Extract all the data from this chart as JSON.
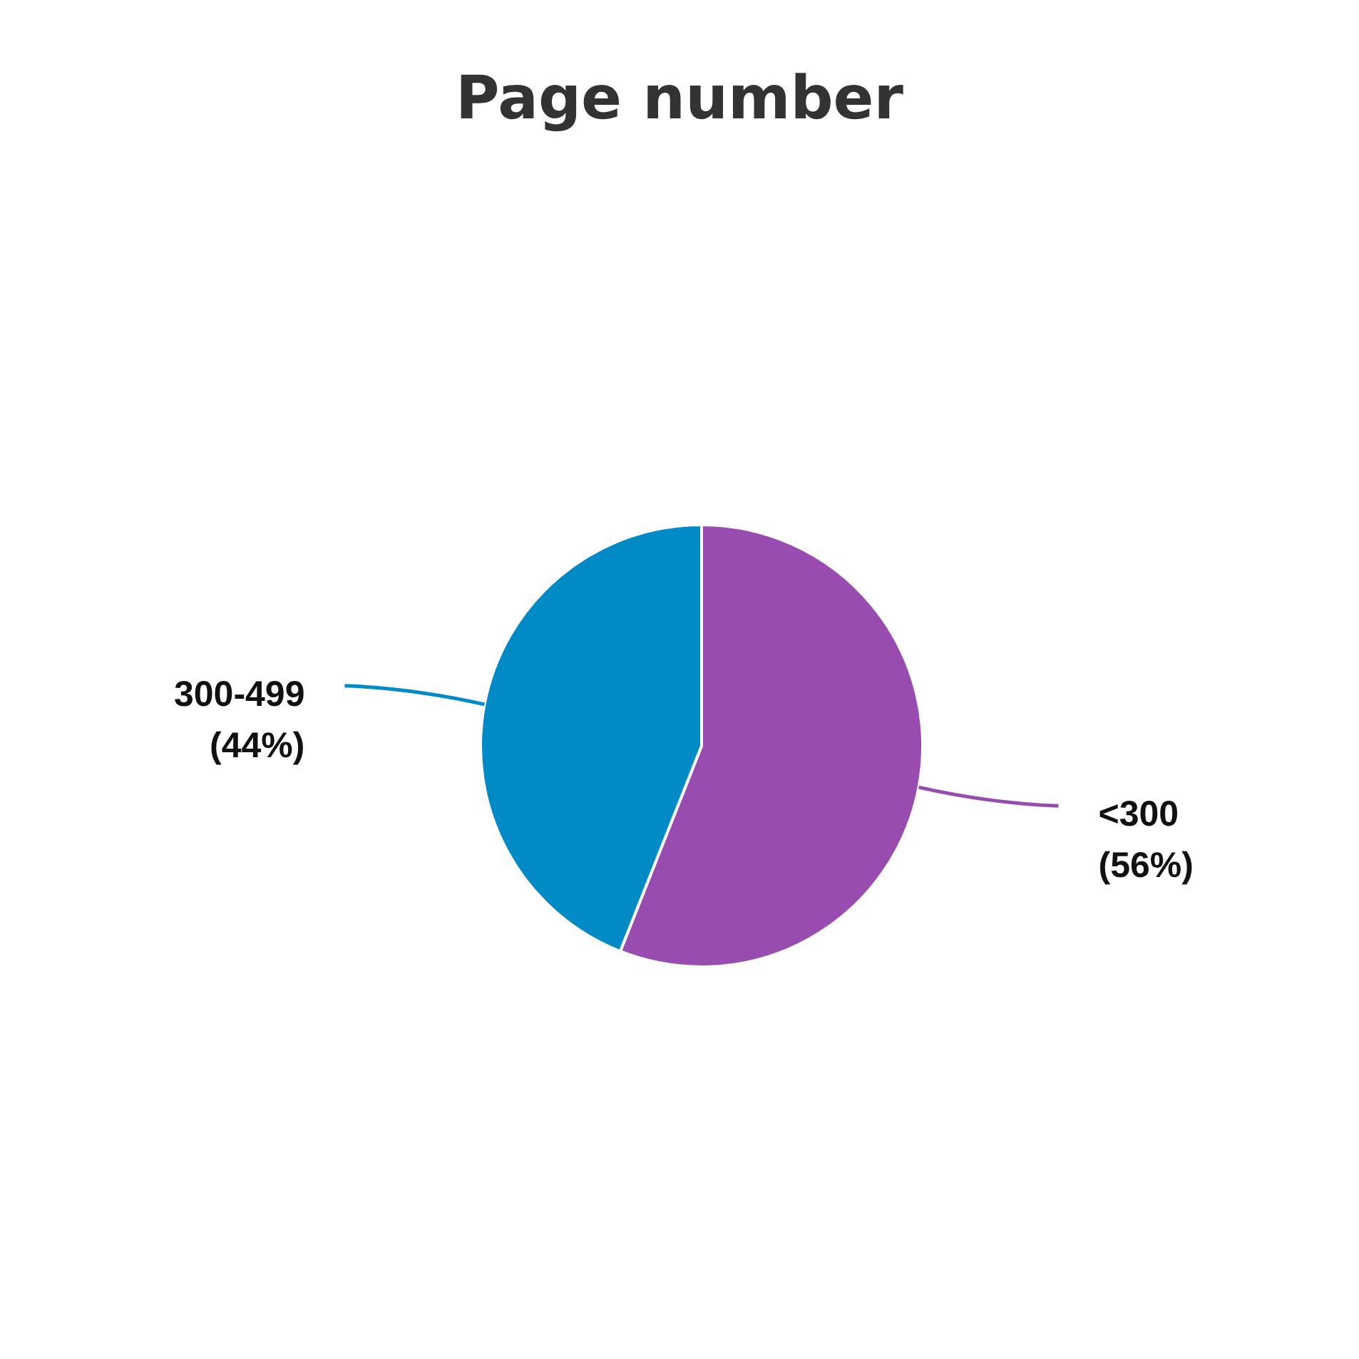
{
  "chart_data": {
    "type": "pie",
    "title": "Page number",
    "categories": [
      "<300",
      "300-499"
    ],
    "values": [
      56,
      44
    ],
    "value_labels": [
      "(56%)",
      "(44%)"
    ],
    "colors": [
      "#984cb0",
      "#008bc6"
    ]
  }
}
